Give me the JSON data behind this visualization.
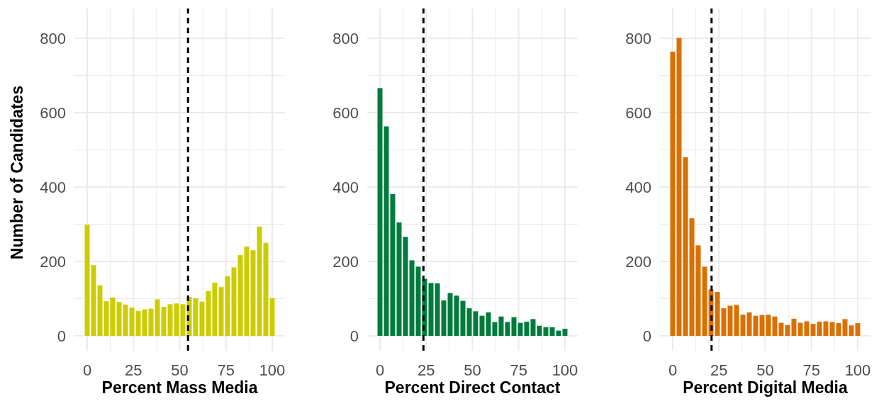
{
  "chart_data": [
    {
      "type": "histogram",
      "xlabel": "Percent Mass Media",
      "ylabel": "Number of Candidates",
      "color": "#cccc00",
      "bins": [
        -1.72,
        1.72,
        5.17,
        8.62,
        12.07,
        15.52,
        18.97,
        22.41,
        25.86,
        29.31,
        32.76,
        36.21,
        39.66,
        43.1,
        46.55,
        50,
        53.45,
        56.9,
        60.34,
        63.79,
        67.24,
        70.69,
        74.14,
        77.59,
        81.03,
        84.48,
        87.93,
        91.38,
        94.83,
        98.28,
        101.72
      ],
      "values": [
        299,
        190,
        136,
        93,
        103,
        91,
        84,
        76,
        67,
        71,
        73,
        98,
        78,
        85,
        87,
        85,
        105,
        101,
        92,
        120,
        143,
        131,
        160,
        184,
        217,
        240,
        230,
        294,
        250,
        101
      ],
      "xlim": [
        -6.9,
        106.9
      ],
      "ylim": [
        -40,
        880
      ],
      "xticks": [
        0,
        {
          "value": 12.5,
          "label": null
        },
        25,
        {
          "value": 37.5,
          "label": null
        },
        50,
        {
          "value": 62.5,
          "label": null
        },
        75,
        {
          "value": 87.5,
          "label": null
        },
        100
      ],
      "yticks": [
        0,
        {
          "value": 100,
          "label": null
        },
        200,
        {
          "value": 300,
          "label": null
        },
        400,
        {
          "value": 500,
          "label": null
        },
        600,
        {
          "value": 700,
          "label": null
        },
        800
      ],
      "grid": true,
      "ref_lines": [
        {
          "axis": "x",
          "value": 54.5,
          "color": "#000000",
          "line_style": "dashed"
        }
      ]
    },
    {
      "type": "histogram",
      "xlabel": "Percent Direct Contact",
      "color": "#007a3d",
      "bins": [
        -1.72,
        1.72,
        5.17,
        8.62,
        12.07,
        15.52,
        18.97,
        22.41,
        25.86,
        29.31,
        32.76,
        36.21,
        39.66,
        43.1,
        46.55,
        50,
        53.45,
        56.9,
        60.34,
        63.79,
        67.24,
        70.69,
        74.14,
        77.59,
        81.03,
        84.48,
        87.93,
        91.38,
        94.83,
        98.28,
        101.72
      ],
      "values": [
        666,
        563,
        381,
        305,
        266,
        203,
        186,
        153,
        142,
        141,
        95,
        115,
        108,
        94,
        74,
        66,
        54,
        63,
        37,
        52,
        37,
        50,
        35,
        38,
        45,
        27,
        23,
        23,
        14,
        19
      ],
      "xlim": [
        -6.9,
        106.9
      ],
      "ylim": [
        -40,
        880
      ],
      "xticks": [
        0,
        {
          "value": 12.5,
          "label": null
        },
        25,
        {
          "value": 37.5,
          "label": null
        },
        50,
        {
          "value": 62.5,
          "label": null
        },
        75,
        {
          "value": 87.5,
          "label": null
        },
        100
      ],
      "yticks": [
        0,
        {
          "value": 100,
          "label": null
        },
        200,
        {
          "value": 300,
          "label": null
        },
        400,
        {
          "value": 500,
          "label": null
        },
        600,
        {
          "value": 700,
          "label": null
        },
        800
      ],
      "grid": true,
      "ref_lines": [
        {
          "axis": "x",
          "value": 23.5,
          "color": "#000000",
          "line_style": "dashed"
        }
      ]
    },
    {
      "type": "histogram",
      "xlabel": "Percent Digital Media",
      "color": "#d97000",
      "bins": [
        -1.72,
        1.72,
        5.17,
        8.62,
        12.07,
        15.52,
        18.97,
        22.41,
        25.86,
        29.31,
        32.76,
        36.21,
        39.66,
        43.1,
        46.55,
        50,
        53.45,
        56.9,
        60.34,
        63.79,
        67.24,
        70.69,
        74.14,
        77.59,
        81.03,
        84.48,
        87.93,
        91.38,
        94.83,
        98.28,
        101.72
      ],
      "values": [
        764,
        801,
        480,
        316,
        243,
        186,
        125,
        118,
        74,
        81,
        83,
        57,
        63,
        54,
        56,
        57,
        52,
        35,
        29,
        46,
        35,
        39,
        32,
        38,
        39,
        37,
        34,
        45,
        28,
        34
      ],
      "xlim": [
        -6.9,
        106.9
      ],
      "ylim": [
        -40,
        880
      ],
      "xticks": [
        0,
        {
          "value": 12.5,
          "label": null
        },
        25,
        {
          "value": 37.5,
          "label": null
        },
        50,
        {
          "value": 62.5,
          "label": null
        },
        75,
        {
          "value": 87.5,
          "label": null
        },
        100
      ],
      "yticks": [
        0,
        {
          "value": 100,
          "label": null
        },
        200,
        {
          "value": 300,
          "label": null
        },
        400,
        {
          "value": 500,
          "label": null
        },
        600,
        {
          "value": 700,
          "label": null
        },
        800
      ],
      "grid": true,
      "ref_lines": [
        {
          "axis": "x",
          "value": 21,
          "color": "#000000",
          "line_style": "dashed"
        }
      ]
    }
  ]
}
